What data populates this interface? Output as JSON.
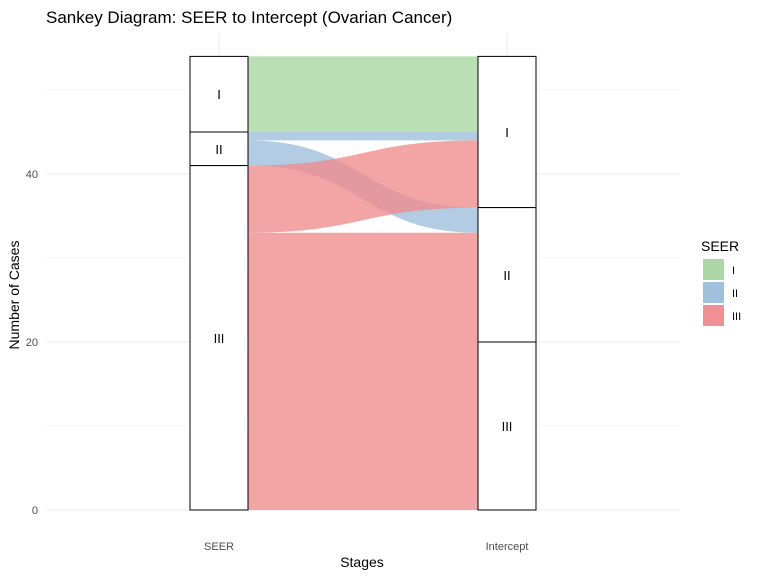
{
  "chart_data": {
    "type": "sankey",
    "title": "Sankey Diagram: SEER to Intercept (Ovarian Cancer)",
    "xlabel": "Stages",
    "ylabel": "Number of Cases",
    "ylim": [
      0,
      54
    ],
    "y_ticks": [
      0,
      20,
      40
    ],
    "axes": [
      "SEER",
      "Intercept"
    ],
    "legend": {
      "title": "SEER",
      "position": "right",
      "items": [
        {
          "label": "I",
          "color": "#a6d6a0"
        },
        {
          "label": "II",
          "color": "#9bbedb"
        },
        {
          "label": "III",
          "color": "#f08a8c"
        }
      ]
    },
    "nodes": {
      "SEER": [
        {
          "label": "I",
          "value": 9
        },
        {
          "label": "II",
          "value": 4
        },
        {
          "label": "III",
          "value": 41
        }
      ],
      "Intercept": [
        {
          "label": "I",
          "value": 18
        },
        {
          "label": "II",
          "value": 16
        },
        {
          "label": "III",
          "value": 20
        }
      ]
    },
    "flows": [
      {
        "from": "I",
        "to": "I",
        "value": 9,
        "color": "#a6d6a0"
      },
      {
        "from": "II",
        "to": "I",
        "value": 1,
        "color": "#9bbedb"
      },
      {
        "from": "II",
        "to": "II",
        "value": 3,
        "color": "#9bbedb"
      },
      {
        "from": "III",
        "to": "I",
        "value": 8,
        "color": "#f08a8c"
      },
      {
        "from": "III",
        "to": "II",
        "value": 13,
        "color": "#f08a8c"
      },
      {
        "from": "III",
        "to": "III",
        "value": 20,
        "color": "#f08a8c"
      }
    ],
    "grid": true
  }
}
